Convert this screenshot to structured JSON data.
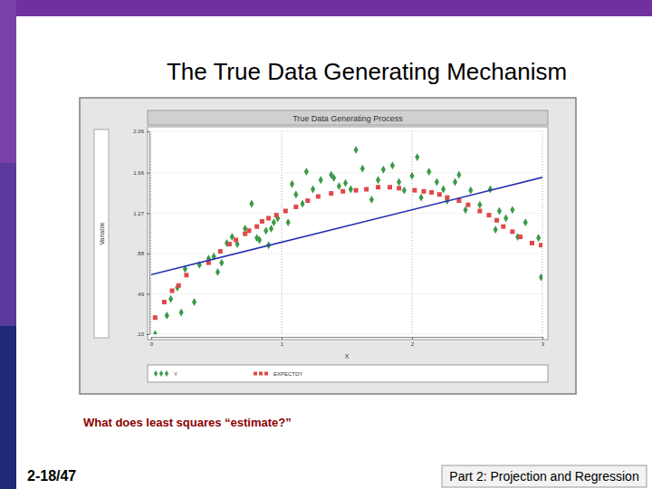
{
  "slide": {
    "title": "The True Data Generating Mechanism",
    "caption": "What does least squares “estimate?”",
    "page": "2-18/47",
    "footer": "Part 2: Projection and Regression"
  },
  "chart_data": {
    "type": "scatter",
    "title": "True Data Generating Process",
    "x_label": "X",
    "y_label": "Variable",
    "xlim": [
      0,
      3
    ],
    "xticks": [
      0,
      1,
      2,
      3
    ],
    "ylim": [
      0.1,
      2.06
    ],
    "yticks": [
      {
        "value": 0.1,
        "label": ".10"
      },
      {
        "value": 0.49,
        "label": ".49"
      },
      {
        "value": 0.88,
        "label": ".88"
      },
      {
        "value": 1.27,
        "label": "1.27"
      },
      {
        "value": 1.66,
        "label": "1.66"
      },
      {
        "value": 2.06,
        "label": "2.06"
      }
    ],
    "grid": true,
    "legend": "bottom",
    "series": [
      {
        "name": "Y",
        "type": "scatter",
        "marker": "diamond",
        "color": "#3a9a48",
        "x": [
          0.03,
          0.12,
          0.15,
          0.2,
          0.23,
          0.33,
          0.26,
          0.37,
          0.44,
          0.48,
          0.51,
          0.54,
          0.58,
          0.62,
          0.66,
          0.72,
          0.77,
          0.81,
          0.83,
          0.88,
          0.9,
          0.92,
          0.94,
          0.97,
          1.05,
          1.08,
          1.11,
          1.16,
          1.19,
          1.24,
          1.3,
          1.38,
          1.4,
          1.44,
          1.49,
          1.53,
          1.57,
          1.62,
          1.69,
          1.74,
          1.78,
          1.85,
          1.9,
          1.94,
          2.0,
          2.04,
          2.07,
          2.13,
          2.19,
          2.24,
          2.27,
          2.33,
          2.36,
          2.41,
          2.45,
          2.52,
          2.6,
          2.64,
          2.67,
          2.72,
          2.77,
          2.81,
          2.87,
          2.97,
          2.99
        ],
        "values": [
          0.1,
          0.28,
          0.44,
          0.55,
          0.31,
          0.41,
          0.73,
          0.77,
          0.83,
          0.85,
          0.7,
          0.79,
          0.98,
          1.04,
          0.97,
          1.12,
          1.36,
          1.03,
          1.01,
          1.1,
          0.96,
          1.12,
          1.18,
          1.22,
          1.18,
          1.55,
          1.45,
          1.36,
          1.67,
          1.5,
          1.59,
          1.64,
          1.61,
          1.53,
          1.56,
          1.5,
          1.88,
          1.7,
          1.4,
          1.59,
          1.69,
          1.73,
          1.57,
          1.49,
          1.63,
          1.81,
          1.42,
          1.67,
          1.57,
          1.5,
          1.39,
          1.57,
          1.64,
          1.3,
          1.49,
          1.35,
          1.5,
          1.11,
          1.29,
          1.22,
          1.3,
          1.04,
          1.18,
          1.03,
          0.65
        ]
      },
      {
        "name": "EXPECTDY",
        "type": "scatter",
        "marker": "square",
        "color": "#e04848",
        "x": [
          0.03,
          0.1,
          0.16,
          0.21,
          0.27,
          0.44,
          0.53,
          0.6,
          0.65,
          0.72,
          0.75,
          0.81,
          0.85,
          0.9,
          0.96,
          1.03,
          1.11,
          1.2,
          1.28,
          1.38,
          1.47,
          1.57,
          1.65,
          1.74,
          1.83,
          1.9,
          2.02,
          2.09,
          2.15,
          2.21,
          2.27,
          2.36,
          2.43,
          2.52,
          2.59,
          2.65,
          2.7,
          2.77,
          2.83,
          2.92,
          2.99
        ],
        "values": [
          0.26,
          0.41,
          0.52,
          0.57,
          0.67,
          0.79,
          0.9,
          0.97,
          1.01,
          1.07,
          1.1,
          1.14,
          1.19,
          1.22,
          1.25,
          1.29,
          1.33,
          1.39,
          1.43,
          1.46,
          1.48,
          1.49,
          1.5,
          1.52,
          1.52,
          1.51,
          1.49,
          1.48,
          1.47,
          1.45,
          1.42,
          1.39,
          1.35,
          1.29,
          1.25,
          1.2,
          1.14,
          1.09,
          1.04,
          0.98,
          0.96
        ]
      },
      {
        "type": "line",
        "line_style": "solid",
        "color": "#2630b0",
        "x": [
          0,
          3
        ],
        "values": [
          0.675,
          1.615
        ]
      }
    ]
  }
}
